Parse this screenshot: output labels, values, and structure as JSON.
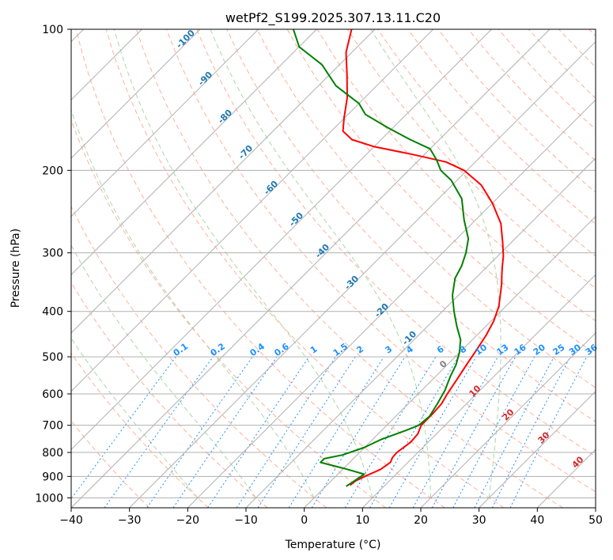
{
  "chart_data": {
    "type": "line",
    "title": "wetPf2_S199.2025.307.13.11.C20",
    "xlabel": "Temperature (°C)",
    "ylabel": "Pressure (hPa)",
    "xlim": [
      -40,
      50
    ],
    "ylim": [
      1050,
      100
    ],
    "x_ticks": [
      -40,
      -30,
      -20,
      -10,
      0,
      10,
      20,
      30,
      40,
      50
    ],
    "y_ticks": [
      100,
      200,
      300,
      400,
      500,
      600,
      700,
      800,
      900,
      1000
    ],
    "grid": true,
    "series": [
      {
        "name": "Temperature",
        "color": "#ff0000",
        "points": [
          [
            4.0,
            940
          ],
          [
            4.2,
            920
          ],
          [
            5.0,
            900
          ],
          [
            6.5,
            870
          ],
          [
            7.0,
            840
          ],
          [
            6.5,
            820
          ],
          [
            6.4,
            800
          ],
          [
            7.0,
            760
          ],
          [
            6.8,
            730
          ],
          [
            5.9,
            700
          ],
          [
            5.9,
            660
          ],
          [
            5.7,
            630
          ],
          [
            5.0,
            600
          ],
          [
            4.2,
            560
          ],
          [
            3.3,
            520
          ],
          [
            2.4,
            480
          ],
          [
            1.6,
            450
          ],
          [
            0.5,
            420
          ],
          [
            -1.2,
            390
          ],
          [
            -2.8,
            370
          ],
          [
            -4.5,
            350
          ],
          [
            -6.0,
            335
          ],
          [
            -7.5,
            320
          ],
          [
            -9.0,
            305
          ],
          [
            -11.5,
            285
          ],
          [
            -15.0,
            260
          ],
          [
            -20.0,
            235
          ],
          [
            -25.0,
            215
          ],
          [
            -30.5,
            200
          ],
          [
            -35.0,
            192
          ],
          [
            -42.0,
            185
          ],
          [
            -50.0,
            178
          ],
          [
            -55.0,
            172
          ],
          [
            -58.0,
            165
          ],
          [
            -60.0,
            155
          ],
          [
            -63.0,
            140
          ],
          [
            -67.0,
            125
          ],
          [
            -71.0,
            112
          ],
          [
            -74.0,
            100
          ]
        ]
      },
      {
        "name": "Dewpoint",
        "color": "#008000",
        "points": [
          [
            3.5,
            945
          ],
          [
            4.0,
            920
          ],
          [
            4.5,
            890
          ],
          [
            0.0,
            865
          ],
          [
            -5.0,
            840
          ],
          [
            -5.0,
            825
          ],
          [
            -2.5,
            810
          ],
          [
            0.0,
            780
          ],
          [
            1.5,
            750
          ],
          [
            4.0,
            720
          ],
          [
            5.5,
            700
          ],
          [
            5.8,
            670
          ],
          [
            5.0,
            630
          ],
          [
            4.0,
            590
          ],
          [
            2.5,
            550
          ],
          [
            1.5,
            520
          ],
          [
            0.0,
            490
          ],
          [
            -2.0,
            460
          ],
          [
            -5.0,
            430
          ],
          [
            -8.0,
            400
          ],
          [
            -11.0,
            370
          ],
          [
            -13.5,
            340
          ],
          [
            -14.5,
            320
          ],
          [
            -16.0,
            300
          ],
          [
            -18.0,
            280
          ],
          [
            -22.0,
            255
          ],
          [
            -26.0,
            230
          ],
          [
            -31.0,
            210
          ],
          [
            -34.5,
            200
          ],
          [
            -37.0,
            190
          ],
          [
            -40.0,
            180
          ],
          [
            -45.0,
            172
          ],
          [
            -51.0,
            162
          ],
          [
            -57.0,
            152
          ],
          [
            -60.0,
            144
          ],
          [
            -67.0,
            132
          ],
          [
            -73.0,
            119
          ],
          [
            -80.0,
            109
          ],
          [
            -84.0,
            100
          ]
        ]
      }
    ],
    "dry_adiabat_labels": [
      "-100",
      "-90",
      "-80",
      "-70",
      "-60",
      "-50",
      "-40",
      "-30",
      "-20",
      "-10",
      "0",
      "10",
      "20",
      "30",
      "40"
    ],
    "mixing_ratio_labels": [
      "0.1",
      "0.2",
      "0.4",
      "0.6",
      "1",
      "1.5",
      "2",
      "3",
      "4",
      "6",
      "8",
      "10",
      "13",
      "16",
      "20",
      "25",
      "30",
      "36"
    ],
    "colors": {
      "isotherm": "#b0b0b0",
      "isobar": "#b0b0b0",
      "dry_adiabat": "#ffb09a",
      "moist_adiabat": "#a8d8a8",
      "mixing_ratio": "#1e90ff",
      "label_blue": "#1f77b4",
      "label_red": "#d62728",
      "label_gray": "#808080"
    }
  }
}
